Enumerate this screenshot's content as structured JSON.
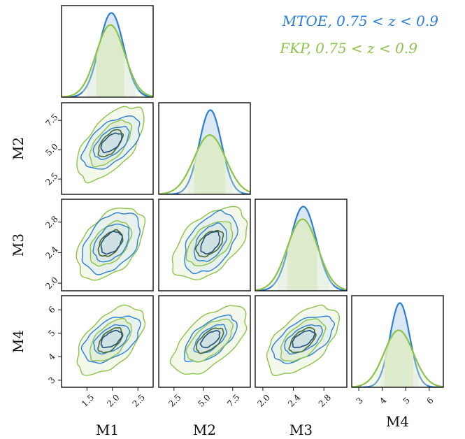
{
  "chart_data": {
    "type": "corner",
    "params": [
      "M1",
      "M2",
      "M3",
      "M4"
    ],
    "ticks": {
      "M1": [
        "1.5",
        "2.0",
        "2.5"
      ],
      "M2": [
        "2.5",
        "5.0",
        "7.5"
      ],
      "M3": [
        "2.0",
        "2.4",
        "2.8"
      ],
      "M4": [
        "3",
        "4",
        "5",
        "6"
      ]
    },
    "ranges": {
      "M1": [
        1.0,
        2.8
      ],
      "M2": [
        1.2,
        9.0
      ],
      "M3": [
        1.9,
        3.1
      ],
      "M4": [
        2.7,
        6.6
      ]
    },
    "series": [
      {
        "name": "MTOE, 0.75 < z < 0.9",
        "color": "#2a7fd4",
        "dark": "#1f4e79",
        "fill": "#d7e6f3",
        "means": {
          "M1": 1.98,
          "M2": 5.6,
          "M3": 2.53,
          "M4": 4.75
        },
        "sigmas": {
          "M1": 0.24,
          "M2": 0.95,
          "M3": 0.17,
          "M4": 0.42
        },
        "corr": {
          "M1|M2": 0.55,
          "M1|M3": 0.4,
          "M1|M4": 0.5,
          "M2|M3": 0.45,
          "M2|M4": 0.6,
          "M3|M4": 0.55
        }
      },
      {
        "name": "FKP, 0.75 < z < 0.9",
        "color": "#8bc34a",
        "dark": "#4a6b2a",
        "fill": "#dcebc7",
        "means": {
          "M1": 1.96,
          "M2": 5.55,
          "M3": 2.52,
          "M4": 4.7
        },
        "sigmas": {
          "M1": 0.28,
          "M2": 1.35,
          "M3": 0.2,
          "M4": 0.62
        },
        "corr": {
          "M1|M2": 0.6,
          "M1|M3": 0.45,
          "M1|M4": 0.55,
          "M2|M3": 0.5,
          "M2|M4": 0.6,
          "M3|M4": 0.55
        }
      }
    ],
    "legend_position": "top-right"
  }
}
